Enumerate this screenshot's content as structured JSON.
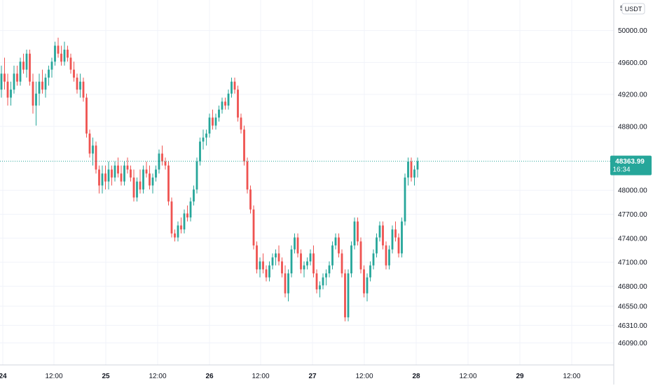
{
  "chart_data": {
    "type": "candlestick",
    "x_label_top_partial": "5",
    "currency_badge": "USDT",
    "y_ticks": [
      50000,
      49600,
      49200,
      48800,
      48000,
      47700,
      47400,
      47100,
      46800,
      46550,
      46310,
      46090
    ],
    "y_tick_labels": [
      "50000.00",
      "49600.00",
      "49200.00",
      "48800.00",
      "48000.00",
      "47700.00",
      "47400.00",
      "47100.00",
      "46800.00",
      "46550.00",
      "46310.00",
      "46090.00"
    ],
    "x_ticks": [
      "24",
      "12:00",
      "25",
      "12:00",
      "26",
      "12:00",
      "27",
      "12:00",
      "28",
      "12:00",
      "29",
      "12:00"
    ],
    "last_price": 48363.99,
    "last_price_label": "48363.99",
    "countdown_label": "16:34",
    "colors": {
      "up": "#26a69a",
      "down": "#ef5350",
      "grid": "#f0f3fa",
      "axis": "#131722"
    },
    "series": [
      [
        49260,
        49560,
        49160,
        49460
      ],
      [
        49460,
        49660,
        49260,
        49360
      ],
      [
        49360,
        49460,
        49060,
        49160
      ],
      [
        49160,
        49360,
        49060,
        49260
      ],
      [
        49260,
        49560,
        49210,
        49460
      ],
      [
        49460,
        49560,
        49310,
        49360
      ],
      [
        49360,
        49660,
        49310,
        49610
      ],
      [
        49610,
        49710,
        49460,
        49510
      ],
      [
        49510,
        49760,
        49410,
        49710
      ],
      [
        49710,
        49760,
        49310,
        49360
      ],
      [
        49360,
        49460,
        48960,
        49060
      ],
      [
        49060,
        49360,
        48810,
        49210
      ],
      [
        49210,
        49460,
        49060,
        49360
      ],
      [
        49360,
        49510,
        49210,
        49260
      ],
      [
        49260,
        49460,
        49160,
        49410
      ],
      [
        49410,
        49560,
        49310,
        49510
      ],
      [
        49510,
        49660,
        49410,
        49610
      ],
      [
        49610,
        49860,
        49560,
        49810
      ],
      [
        49810,
        49910,
        49660,
        49710
      ],
      [
        49710,
        49810,
        49560,
        49610
      ],
      [
        49610,
        49860,
        49560,
        49760
      ],
      [
        49760,
        49810,
        49610,
        49660
      ],
      [
        49660,
        49710,
        49460,
        49510
      ],
      [
        49510,
        49610,
        49360,
        49410
      ],
      [
        49410,
        49460,
        49210,
        49260
      ],
      [
        49260,
        49460,
        49160,
        49360
      ],
      [
        49360,
        49410,
        49110,
        49160
      ],
      [
        49160,
        49210,
        48660,
        48710
      ],
      [
        48710,
        48760,
        48410,
        48460
      ],
      [
        48460,
        48660,
        48310,
        48560
      ],
      [
        48560,
        48610,
        48210,
        48260
      ],
      [
        48260,
        48310,
        47960,
        48060
      ],
      [
        48060,
        48310,
        47960,
        48210
      ],
      [
        48210,
        48310,
        48010,
        48110
      ],
      [
        48110,
        48360,
        48010,
        48260
      ],
      [
        48260,
        48310,
        48060,
        48160
      ],
      [
        48160,
        48360,
        48110,
        48310
      ],
      [
        48310,
        48410,
        48160,
        48210
      ],
      [
        48210,
        48310,
        48060,
        48110
      ],
      [
        48110,
        48360,
        48060,
        48310
      ],
      [
        48310,
        48410,
        48210,
        48260
      ],
      [
        48260,
        48310,
        48110,
        48160
      ],
      [
        48160,
        48260,
        47860,
        47910
      ],
      [
        47910,
        48160,
        47860,
        48110
      ],
      [
        48110,
        48260,
        47960,
        48010
      ],
      [
        48010,
        48310,
        47960,
        48260
      ],
      [
        48260,
        48360,
        48160,
        48210
      ],
      [
        48210,
        48310,
        48010,
        48060
      ],
      [
        48060,
        48210,
        47960,
        48160
      ],
      [
        48160,
        48310,
        48110,
        48260
      ],
      [
        48260,
        48510,
        48210,
        48460
      ],
      [
        48460,
        48560,
        48310,
        48360
      ],
      [
        48360,
        48410,
        48260,
        48310
      ],
      [
        48310,
        48360,
        47810,
        47860
      ],
      [
        47860,
        47910,
        47410,
        47460
      ],
      [
        47460,
        47510,
        47360,
        47410
      ],
      [
        47410,
        47610,
        47360,
        47560
      ],
      [
        47560,
        47660,
        47460,
        47510
      ],
      [
        47510,
        47760,
        47460,
        47710
      ],
      [
        47710,
        47810,
        47610,
        47660
      ],
      [
        47660,
        47910,
        47610,
        47860
      ],
      [
        47860,
        48060,
        47810,
        48010
      ],
      [
        48010,
        48410,
        47960,
        48360
      ],
      [
        48360,
        48660,
        48310,
        48610
      ],
      [
        48610,
        48760,
        48510,
        48660
      ],
      [
        48660,
        48760,
        48560,
        48710
      ],
      [
        48710,
        48960,
        48660,
        48910
      ],
      [
        48910,
        49010,
        48760,
        48810
      ],
      [
        48810,
        48960,
        48760,
        48910
      ],
      [
        48910,
        49060,
        48860,
        49010
      ],
      [
        49010,
        49160,
        48960,
        49110
      ],
      [
        49110,
        49160,
        49010,
        49060
      ],
      [
        49060,
        49260,
        49010,
        49210
      ],
      [
        49210,
        49410,
        49160,
        49360
      ],
      [
        49360,
        49410,
        49210,
        49260
      ],
      [
        49260,
        49310,
        48860,
        48910
      ],
      [
        48910,
        48960,
        48710,
        48760
      ],
      [
        48760,
        48810,
        48310,
        48360
      ],
      [
        48360,
        48410,
        47960,
        48010
      ],
      [
        48010,
        48060,
        47710,
        47760
      ],
      [
        47760,
        47810,
        47260,
        47310
      ],
      [
        47310,
        47360,
        46960,
        47010
      ],
      [
        47010,
        47160,
        46910,
        47110
      ],
      [
        47110,
        47210,
        46960,
        47010
      ],
      [
        47010,
        47060,
        46860,
        46910
      ],
      [
        46910,
        47110,
        46860,
        47060
      ],
      [
        47060,
        47210,
        47010,
        47160
      ],
      [
        47160,
        47260,
        47060,
        47210
      ],
      [
        47210,
        47310,
        47060,
        47110
      ],
      [
        47110,
        47160,
        46910,
        46960
      ],
      [
        46960,
        47060,
        46660,
        46710
      ],
      [
        46710,
        47010,
        46610,
        46960
      ],
      [
        46960,
        47310,
        46910,
        47260
      ],
      [
        47260,
        47460,
        47210,
        47410
      ],
      [
        47410,
        47460,
        47160,
        47210
      ],
      [
        47210,
        47260,
        46960,
        47010
      ],
      [
        47010,
        47110,
        46910,
        47060
      ],
      [
        47060,
        47160,
        47010,
        47110
      ],
      [
        47110,
        47260,
        47060,
        47210
      ],
      [
        47210,
        47310,
        46910,
        46960
      ],
      [
        46960,
        47010,
        46710,
        46760
      ],
      [
        46760,
        46860,
        46660,
        46810
      ],
      [
        46810,
        46960,
        46760,
        46910
      ],
      [
        46910,
        47010,
        46810,
        46960
      ],
      [
        46960,
        47110,
        46910,
        47060
      ],
      [
        47060,
        47360,
        47010,
        47310
      ],
      [
        47310,
        47460,
        47260,
        47410
      ],
      [
        47410,
        47460,
        47160,
        47210
      ],
      [
        47210,
        47260,
        46910,
        46960
      ],
      [
        46960,
        47010,
        46360,
        46410
      ],
      [
        46410,
        47010,
        46360,
        46960
      ],
      [
        46960,
        47360,
        46910,
        47310
      ],
      [
        47310,
        47660,
        47260,
        47610
      ],
      [
        47610,
        47660,
        47310,
        47360
      ],
      [
        47360,
        47410,
        46960,
        47010
      ],
      [
        47010,
        47060,
        46660,
        46710
      ],
      [
        46710,
        46960,
        46610,
        46910
      ],
      [
        46910,
        47110,
        46860,
        47060
      ],
      [
        47060,
        47260,
        47010,
        47210
      ],
      [
        47210,
        47460,
        47160,
        47410
      ],
      [
        47410,
        47610,
        47360,
        47560
      ],
      [
        47560,
        47610,
        47260,
        47310
      ],
      [
        47310,
        47360,
        47010,
        47060
      ],
      [
        47060,
        47310,
        47010,
        47260
      ],
      [
        47260,
        47560,
        47210,
        47510
      ],
      [
        47510,
        47610,
        47360,
        47410
      ],
      [
        47410,
        47460,
        47160,
        47210
      ],
      [
        47210,
        47660,
        47160,
        47610
      ],
      [
        47610,
        48210,
        47560,
        48160
      ],
      [
        48160,
        48410,
        48060,
        48360
      ],
      [
        48360,
        48410,
        48110,
        48160
      ],
      [
        48160,
        48310,
        48060,
        48260
      ],
      [
        48260,
        48410,
        48160,
        48364
      ]
    ]
  }
}
